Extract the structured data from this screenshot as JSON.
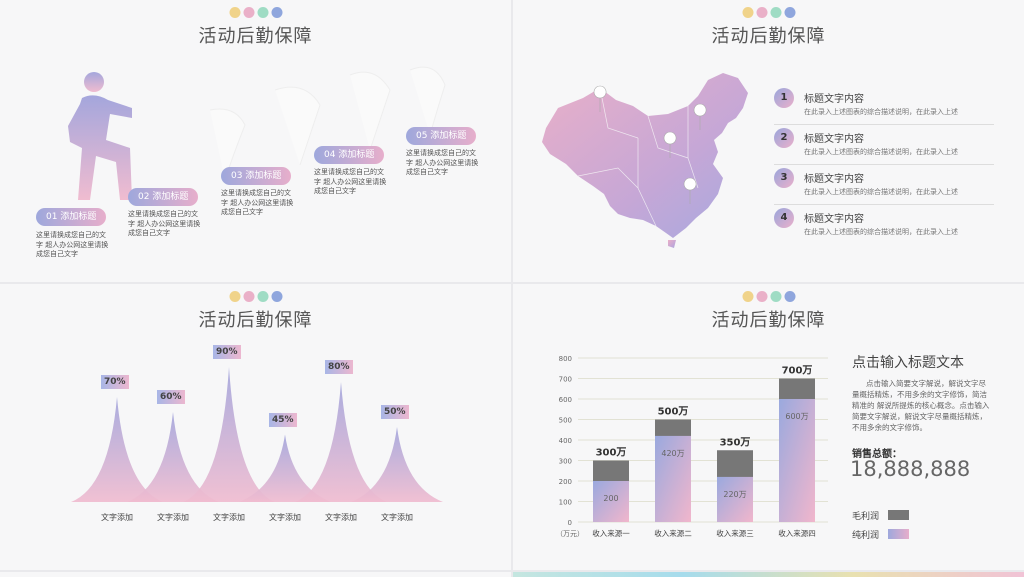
{
  "dot_colors": [
    "#f0d38a",
    "#eab0c8",
    "#9fdcc4",
    "#8fa6dd"
  ],
  "slide1": {
    "title": "活动后勤保障",
    "steps": [
      {
        "label": "01 添加标题",
        "desc": "这里请换成您自己的文字 超人办公网这里请换成您自己文字"
      },
      {
        "label": "02 添加标题",
        "desc": "这里请换成您自己的文字 超人办公网这里请换成您自己文字"
      },
      {
        "label": "03 添加标题",
        "desc": "这里请换成您自己的文字 超人办公网这里请换成您自己文字"
      },
      {
        "label": "04 添加标题",
        "desc": "这里请换成您自己的文字 超人办公网这里请换成您自己文字"
      },
      {
        "label": "05 添加标题",
        "desc": "这里请换成您自己的文字 超人办公网这里请换成您自己文字"
      }
    ]
  },
  "slide2": {
    "title": "活动后勤保障",
    "items": [
      {
        "num": "1",
        "title": "标题文字内容",
        "desc": "在此录入上述图表的综合描述说明，在此录入上述"
      },
      {
        "num": "2",
        "title": "标题文字内容",
        "desc": "在此录入上述图表的综合描述说明，在此录入上述"
      },
      {
        "num": "3",
        "title": "标题文字内容",
        "desc": "在此录入上述图表的综合描述说明，在此录入上述"
      },
      {
        "num": "4",
        "title": "标题文字内容",
        "desc": "在此录入上述图表的综合描述说明，在此录入上述"
      }
    ]
  },
  "slide3": {
    "title": "活动后勤保障",
    "chart_data": {
      "type": "area",
      "categories": [
        "文字添加",
        "文字添加",
        "文字添加",
        "文字添加",
        "文字添加",
        "文字添加"
      ],
      "values": [
        70,
        60,
        90,
        45,
        80,
        50
      ],
      "labels": [
        "70%",
        "60%",
        "90%",
        "45%",
        "80%",
        "50%"
      ],
      "ylim": [
        0,
        100
      ]
    }
  },
  "slide4": {
    "title": "活动后勤保障",
    "chart_data": {
      "type": "bar",
      "categories": [
        "收入来源一",
        "收入来源二",
        "收入来源三",
        "收入来源四"
      ],
      "series": [
        {
          "name": "纯利润",
          "values": [
            200,
            420,
            220,
            600
          ],
          "labels": [
            "200",
            "420万",
            "220万",
            "600万"
          ]
        },
        {
          "name": "毛利润",
          "values": [
            300,
            500,
            350,
            700
          ],
          "labels": [
            "300万",
            "500万",
            "350万",
            "700万"
          ]
        }
      ],
      "yticks": [
        "0",
        "100",
        "200",
        "300",
        "400",
        "500",
        "600",
        "700",
        "800"
      ],
      "ylim": [
        0,
        800
      ],
      "yunit": "（万元）"
    },
    "side_title": "点击输入标题文本",
    "side_text": "点击输入简要文字解说，解说文字尽量概括精炼，不用多余的文字修饰，简洁精准的 解说所提炼的核心概念。点击输入简要文字解说，解说文字尽量概括精炼，不用多余的文字修饰。",
    "sales_label": "销售总额：",
    "sales_value": "18,888,888",
    "legend": [
      {
        "name": "毛利润",
        "color": "#777777"
      },
      {
        "name": "纯利润",
        "color": "gradient"
      }
    ]
  }
}
